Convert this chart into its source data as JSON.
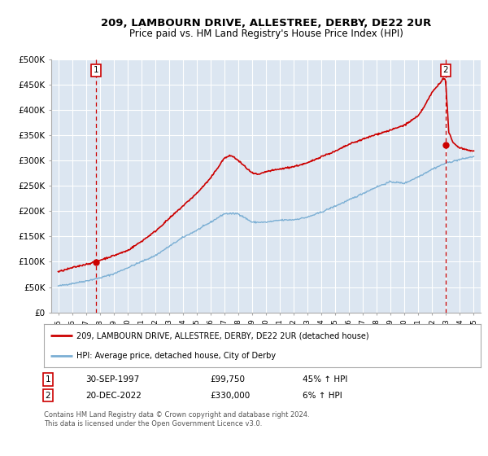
{
  "title1": "209, LAMBOURN DRIVE, ALLESTREE, DERBY, DE22 2UR",
  "title2": "Price paid vs. HM Land Registry's House Price Index (HPI)",
  "ylabel_ticks": [
    "£0",
    "£50K",
    "£100K",
    "£150K",
    "£200K",
    "£250K",
    "£300K",
    "£350K",
    "£400K",
    "£450K",
    "£500K"
  ],
  "ytick_values": [
    0,
    50000,
    100000,
    150000,
    200000,
    250000,
    300000,
    350000,
    400000,
    450000,
    500000
  ],
  "ylim": [
    0,
    500000
  ],
  "xlim_start": 1994.5,
  "xlim_end": 2025.5,
  "plot_bg_color": "#dce6f1",
  "grid_color": "#ffffff",
  "sale1_x": 1997.75,
  "sale1_y": 99750,
  "sale1_label": "1",
  "sale1_date": "30-SEP-1997",
  "sale1_price": "£99,750",
  "sale1_hpi": "45% ↑ HPI",
  "sale2_x": 2022.97,
  "sale2_y": 330000,
  "sale2_label": "2",
  "sale2_date": "20-DEC-2022",
  "sale2_price": "£330,000",
  "sale2_hpi": "6% ↑ HPI",
  "legend_line1": "209, LAMBOURN DRIVE, ALLESTREE, DERBY, DE22 2UR (detached house)",
  "legend_line2": "HPI: Average price, detached house, City of Derby",
  "footer": "Contains HM Land Registry data © Crown copyright and database right 2024.\nThis data is licensed under the Open Government Licence v3.0.",
  "red_line_color": "#cc0000",
  "blue_line_color": "#7bafd4",
  "xtick_years": [
    1995,
    1996,
    1997,
    1998,
    1999,
    2000,
    2001,
    2002,
    2003,
    2004,
    2005,
    2006,
    2007,
    2008,
    2009,
    2010,
    2011,
    2012,
    2013,
    2014,
    2015,
    2016,
    2017,
    2018,
    2019,
    2020,
    2021,
    2022,
    2023,
    2024,
    2025
  ]
}
